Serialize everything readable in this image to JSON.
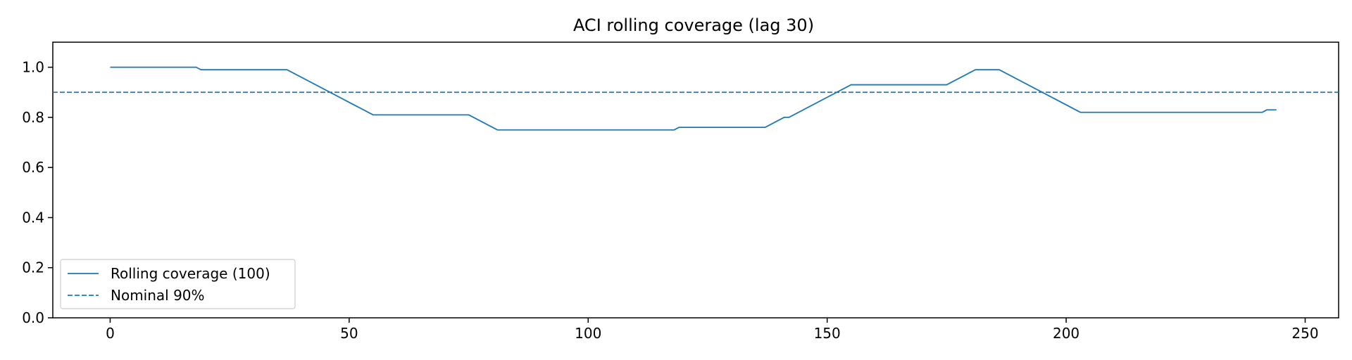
{
  "chart_data": {
    "type": "line",
    "title": "ACI rolling coverage (lag 30)",
    "xlabel": "",
    "ylabel": "",
    "xlim": [
      -12,
      257
    ],
    "ylim": [
      0,
      1.1
    ],
    "x_ticks": [
      0,
      50,
      100,
      150,
      200,
      250
    ],
    "y_ticks": [
      0.0,
      0.2,
      0.4,
      0.6,
      0.8,
      1.0
    ],
    "x_tick_labels": [
      "0",
      "50",
      "100",
      "150",
      "200",
      "250"
    ],
    "y_tick_labels": [
      "0.0",
      "0.2",
      "0.4",
      "0.6",
      "0.8",
      "1.0"
    ],
    "grid": false,
    "legend_position": "lower-left",
    "series": [
      {
        "name": "Rolling coverage (100)",
        "style": "solid",
        "color": "#1f77b4",
        "x": [
          0,
          18,
          19,
          37,
          55,
          75,
          81,
          118,
          119,
          137,
          141,
          142,
          155,
          175,
          181,
          186,
          203,
          241,
          242,
          244
        ],
        "y": [
          1.0,
          1.0,
          0.99,
          0.99,
          0.81,
          0.81,
          0.75,
          0.75,
          0.76,
          0.76,
          0.8,
          0.8,
          0.93,
          0.93,
          0.99,
          0.99,
          0.82,
          0.82,
          0.83,
          0.83
        ]
      },
      {
        "name": "Nominal 90%",
        "style": "dashed",
        "color": "#1f77b4",
        "hline": 0.9
      }
    ]
  }
}
